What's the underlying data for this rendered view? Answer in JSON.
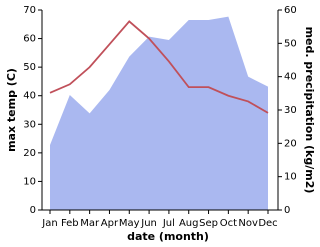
{
  "chart_data": {
    "type": "line",
    "x_label": "date (month)",
    "y_label": "max temp (C)",
    "y2_label": "med. precipitation (kg/m2)",
    "categories": [
      "Jan",
      "Feb",
      "Mar",
      "Apr",
      "May",
      "Jun",
      "Jul",
      "Aug",
      "Sep",
      "Oct",
      "Nov",
      "Dec"
    ],
    "series": [
      {
        "type": "area",
        "axis": "y2",
        "color": "#aab8f0",
        "values": [
          19.5,
          34.5,
          29,
          36,
          46,
          52,
          51,
          57,
          57,
          58,
          40,
          37
        ]
      },
      {
        "type": "line",
        "axis": "y",
        "color": "#c0505a",
        "values": [
          41,
          44,
          50,
          58,
          66,
          60,
          52,
          43,
          43,
          40,
          38,
          34
        ]
      }
    ],
    "ylim": [
      0,
      70
    ],
    "yticks": [
      0,
      10,
      20,
      30,
      40,
      50,
      60,
      70
    ],
    "y2lim": [
      0,
      60
    ],
    "y2ticks": [
      0,
      10,
      20,
      30,
      40,
      50,
      60
    ]
  }
}
